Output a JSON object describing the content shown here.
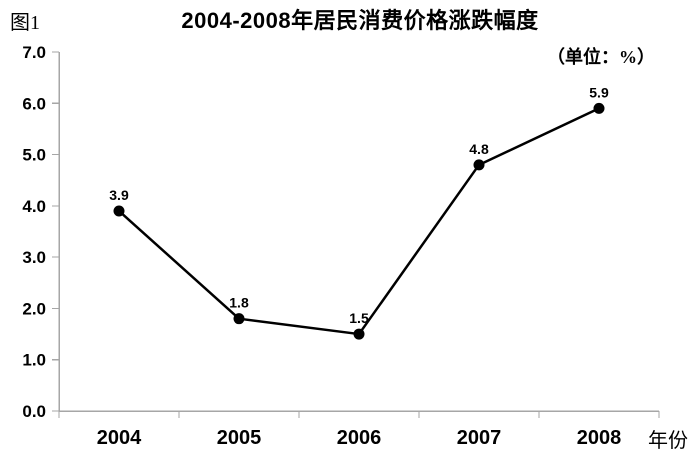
{
  "figure_label": "图1",
  "header": {
    "title": "2004-2008年居民消费价格涨跌幅度",
    "unit_label": "（单位：%）"
  },
  "chart_data": {
    "type": "line",
    "title": "2004-2008年居民消费价格涨跌幅度",
    "unit": "%",
    "categories": [
      "2004",
      "2005",
      "2006",
      "2007",
      "2008"
    ],
    "values": [
      3.9,
      1.8,
      1.5,
      4.8,
      5.9
    ],
    "point_labels": [
      "3.9",
      "1.8",
      "1.5",
      "4.8",
      "5.9"
    ],
    "series_name": "居民消费价格涨跌幅度",
    "xlabel": "年份",
    "ylabel": "",
    "ylim": [
      0.0,
      7.0
    ],
    "ytick_labels": [
      "0.0",
      "1.0",
      "2.0",
      "3.0",
      "4.0",
      "5.0",
      "6.0",
      "7.0"
    ],
    "grid": false,
    "legend": "none",
    "line_color": "#000000",
    "marker": "filled-circle",
    "axis_color": "#a6a6a6"
  }
}
